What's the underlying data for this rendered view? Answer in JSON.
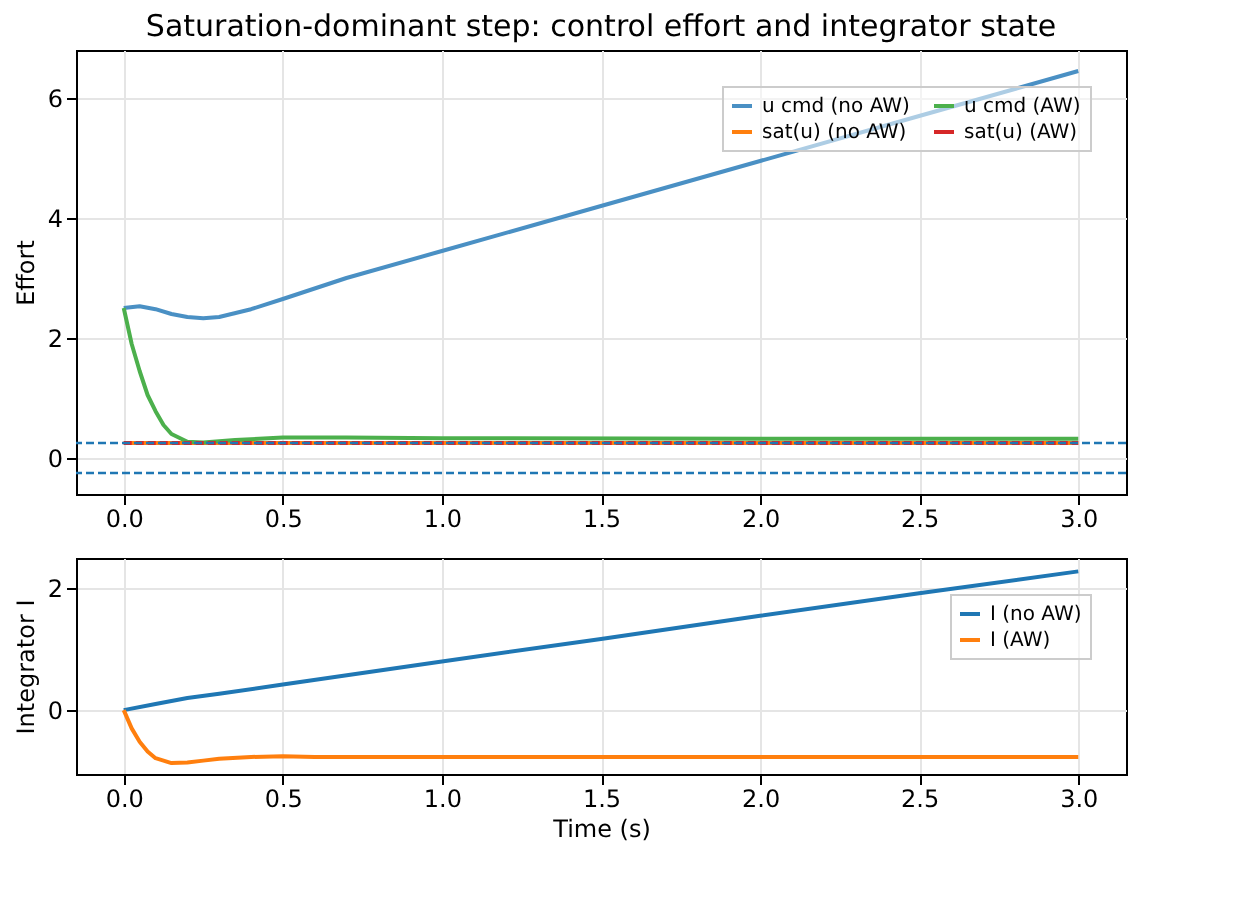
{
  "chart_data": [
    {
      "type": "line",
      "title": "Saturation-dominant step: control effort and integrator state",
      "ylabel": "Effort",
      "xlim": [
        -0.15,
        3.15
      ],
      "ylim": [
        -0.6,
        6.8
      ],
      "xticks": [
        {
          "value": 0,
          "label": "0.0"
        },
        0.5,
        {
          "value": 1,
          "label": "1.0"
        },
        1.5,
        {
          "value": 2,
          "label": "2.0"
        },
        2.5,
        {
          "value": 3,
          "label": "3.0"
        }
      ],
      "yticks": [
        0,
        2,
        4,
        6
      ],
      "grid": true,
      "legend": "top right",
      "line_style": "solid",
      "series": [
        {
          "name": "u cmd (no AW)",
          "color": "#4a90c4",
          "x": [
            0,
            0.05,
            0.1,
            0.15,
            0.2,
            0.25,
            0.3,
            0.4,
            0.5,
            0.7,
            1.0,
            1.5,
            2.0,
            2.5,
            3.0
          ],
          "values": [
            2.5,
            2.53,
            2.48,
            2.4,
            2.35,
            2.33,
            2.35,
            2.48,
            2.65,
            3.0,
            3.45,
            4.2,
            4.95,
            5.7,
            6.45
          ]
        },
        {
          "name": "sat(u) (no AW)",
          "color": "#ff7f0e",
          "x": [
            0,
            3.0
          ],
          "values": [
            0.25,
            0.25
          ]
        },
        {
          "name": "u cmd (AW)",
          "color": "#4cb04c",
          "x": [
            0,
            0.025,
            0.05,
            0.075,
            0.1,
            0.125,
            0.15,
            0.2,
            0.25,
            0.35,
            0.5,
            0.7,
            1.0,
            2.0,
            3.0
          ],
          "values": [
            2.5,
            1.9,
            1.45,
            1.05,
            0.78,
            0.55,
            0.4,
            0.27,
            0.26,
            0.3,
            0.34,
            0.34,
            0.33,
            0.32,
            0.32
          ]
        },
        {
          "name": "sat(u) (AW)",
          "color": "#d62728",
          "x": [
            0,
            3.0
          ],
          "values": [
            0.25,
            0.25
          ],
          "line_style": "dashed"
        }
      ],
      "ref_lines": [
        {
          "axis": "y",
          "value": 0.25,
          "color": "#1f77b4",
          "line_style": "dashed"
        },
        {
          "axis": "y",
          "value": -0.25,
          "color": "#1f77b4",
          "line_style": "dashed"
        }
      ]
    },
    {
      "type": "line",
      "xlabel": "Time (s)",
      "ylabel": "Integrator I",
      "xlim": [
        -0.15,
        3.15
      ],
      "ylim": [
        -1.05,
        2.5
      ],
      "xticks": [
        {
          "value": 0,
          "label": "0.0"
        },
        0.5,
        {
          "value": 1,
          "label": "1.0"
        },
        1.5,
        {
          "value": 2,
          "label": "2.0"
        },
        2.5,
        {
          "value": 3,
          "label": "3.0"
        }
      ],
      "yticks": [
        0,
        2
      ],
      "grid": true,
      "legend": "top right",
      "line_style": "solid",
      "series": [
        {
          "name": "I (no AW)",
          "color": "#1f77b4",
          "x": [
            0,
            0.1,
            0.2,
            0.3,
            0.5,
            1.0,
            1.5,
            2.0,
            2.5,
            3.0
          ],
          "values": [
            0,
            0.1,
            0.2,
            0.27,
            0.42,
            0.8,
            1.17,
            1.55,
            1.92,
            2.28
          ]
        },
        {
          "name": "I (AW)",
          "color": "#ff7f0e",
          "x": [
            0,
            0.025,
            0.05,
            0.075,
            0.1,
            0.15,
            0.2,
            0.25,
            0.3,
            0.4,
            0.5,
            0.6,
            0.8,
            1.0,
            2.0,
            3.0
          ],
          "values": [
            0,
            -0.3,
            -0.52,
            -0.68,
            -0.79,
            -0.87,
            -0.86,
            -0.83,
            -0.8,
            -0.77,
            -0.76,
            -0.77,
            -0.77,
            -0.77,
            -0.77,
            -0.77
          ]
        }
      ]
    }
  ]
}
